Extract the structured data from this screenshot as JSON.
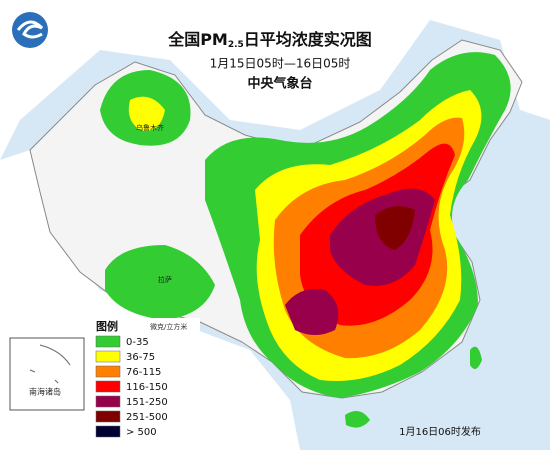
{
  "header": {
    "title_prefix": "全国PM",
    "title_sub": "2.5",
    "title_suffix": "日平均浓度实况图",
    "subtitle": "1月15日05时—16日05时",
    "agency": "中央气象台"
  },
  "legend": {
    "title": "图例",
    "unit": "微克/立方米",
    "items": [
      {
        "label": "0-35",
        "color": "#33cc33"
      },
      {
        "label": "36-75",
        "color": "#ffff00"
      },
      {
        "label": "76-115",
        "color": "#ff8000"
      },
      {
        "label": "116-150",
        "color": "#ff0000"
      },
      {
        "label": "151-250",
        "color": "#99004c"
      },
      {
        "label": "251-500",
        "color": "#800000"
      },
      {
        "label": "> 500",
        "color": "#000033"
      }
    ]
  },
  "inset": {
    "label": "南海诸岛"
  },
  "cities": [
    "乌鲁木齐",
    "拉萨"
  ],
  "footer": "1月16日06时发布"
}
